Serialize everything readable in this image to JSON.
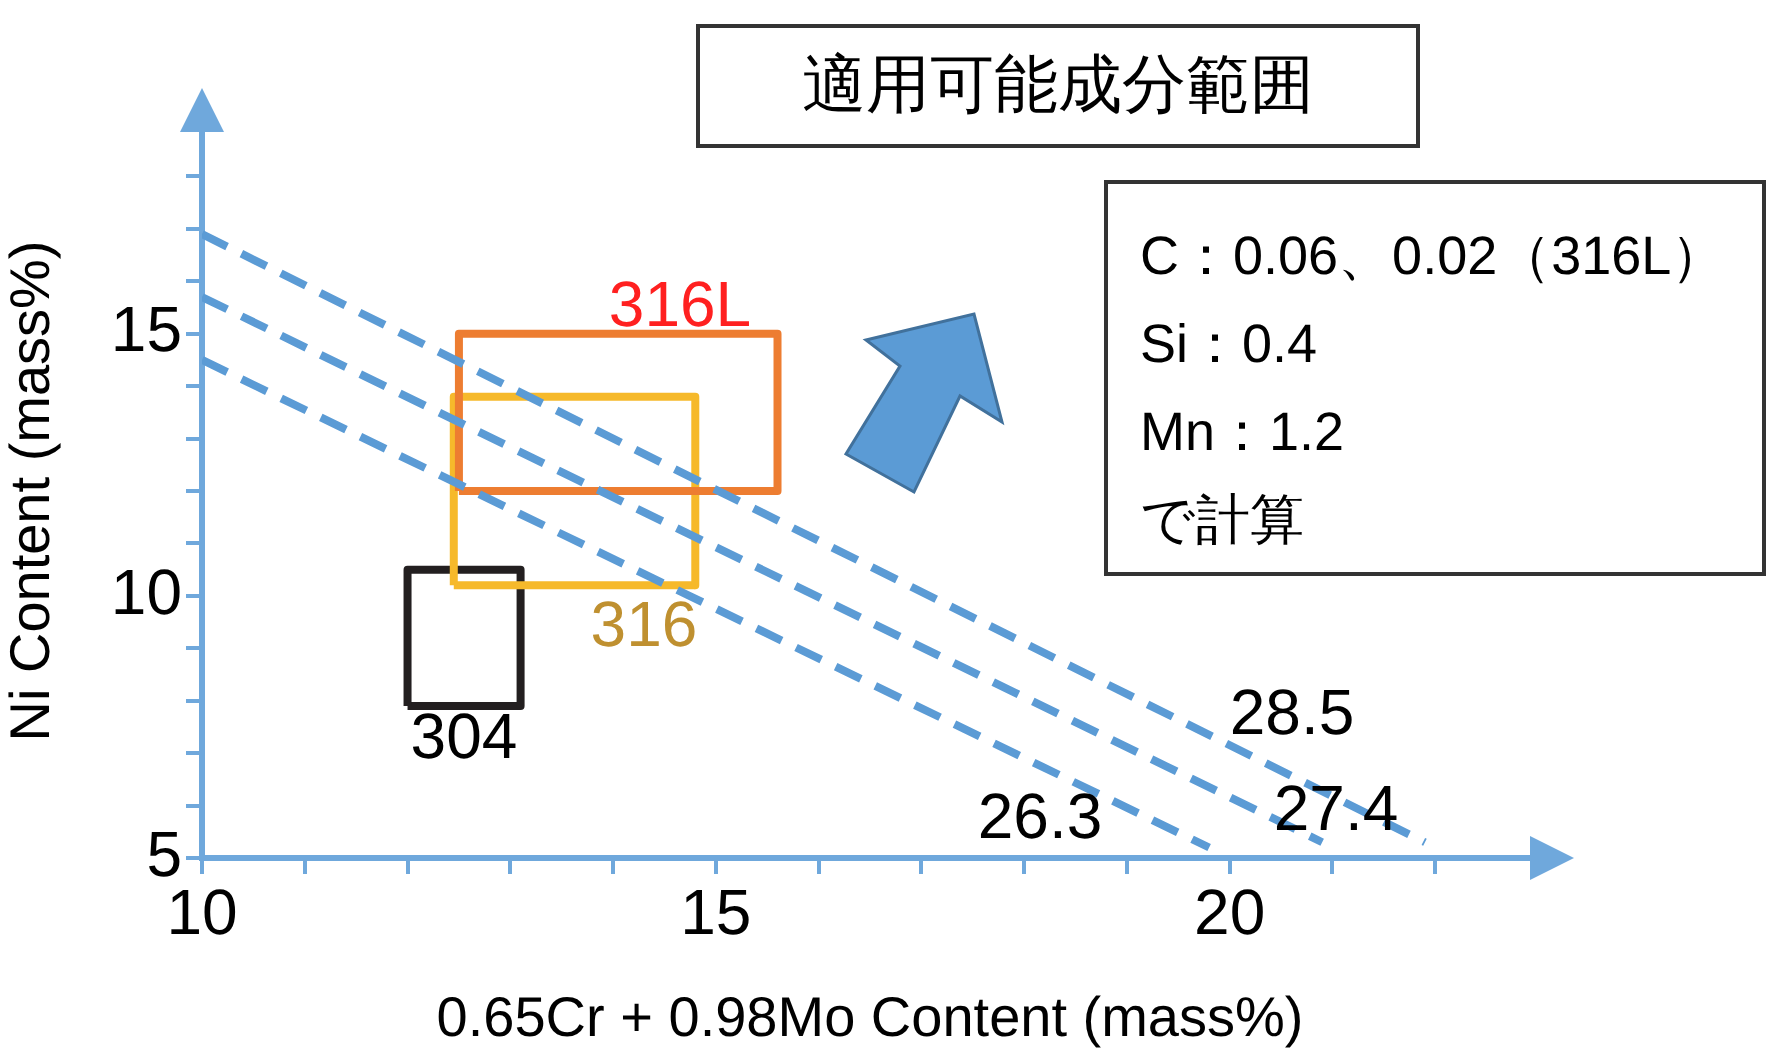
{
  "chart_data": {
    "type": "line",
    "title": "適用可能成分範囲",
    "xlabel": "0.65Cr + 0.98Mo Content (mass%)",
    "ylabel": "Ni Content (mass%)",
    "xlim": [
      10,
      23
    ],
    "ylim": [
      5,
      19
    ],
    "xticks": [
      10,
      {
        "value": 11,
        "label": null
      },
      {
        "value": 12,
        "label": null
      },
      {
        "value": 13,
        "label": null
      },
      {
        "value": 14,
        "label": null
      },
      15,
      {
        "value": 16,
        "label": null
      },
      {
        "value": 17,
        "label": null
      },
      {
        "value": 18,
        "label": null
      },
      {
        "value": 19,
        "label": null
      },
      20,
      {
        "value": 21,
        "label": null
      },
      {
        "value": 22,
        "label": null
      }
    ],
    "yticks": [
      5,
      {
        "value": 6,
        "label": null
      },
      {
        "value": 7,
        "label": null
      },
      {
        "value": 8,
        "label": null
      },
      {
        "value": 9,
        "label": null
      },
      10,
      {
        "value": 11,
        "label": null
      },
      {
        "value": 12,
        "label": null
      },
      {
        "value": 13,
        "label": null
      },
      {
        "value": 14,
        "label": null
      },
      15,
      {
        "value": 16,
        "label": null
      },
      {
        "value": 17,
        "label": null
      },
      {
        "value": 18,
        "label": null
      }
    ],
    "grid": false,
    "legend": false,
    "marker": "none",
    "series": [
      {
        "line_style": "dashed",
        "color": "#5b9bd5",
        "x": [
          10,
          21.9
        ],
        "values": [
          16.9,
          5.3
        ]
      },
      {
        "line_style": "dashed",
        "color": "#5b9bd5",
        "x": [
          10,
          20.9
        ],
        "values": [
          15.7,
          5.3
        ]
      },
      {
        "line_style": "dashed",
        "color": "#5b9bd5",
        "x": [
          10,
          19.8
        ],
        "values": [
          14.5,
          5.2
        ]
      },
      {
        "line_style": "solid",
        "color": "#ed7d31",
        "x": [
          12.5,
          12.5,
          15.6,
          15.6
        ],
        "values": [
          12.0,
          15.0,
          15.0,
          12.0
        ]
      },
      {
        "line_style": "solid",
        "color": "#ed7d31",
        "x": [
          12.5,
          15.6
        ],
        "values": [
          12.0,
          12.0
        ]
      },
      {
        "line_style": "solid",
        "color": "#f6b92b",
        "x": [
          12.45,
          12.45,
          14.8,
          14.8
        ],
        "values": [
          10.2,
          13.8,
          13.8,
          10.2
        ]
      },
      {
        "line_style": "solid",
        "color": "#f6b92b",
        "x": [
          12.45,
          14.8
        ],
        "values": [
          10.2,
          10.2
        ]
      },
      {
        "line_style": "solid",
        "color": "#231f20",
        "x": [
          12.0,
          12.0,
          13.1,
          13.1
        ],
        "values": [
          7.9,
          10.5,
          10.5,
          7.9
        ]
      },
      {
        "line_style": "solid",
        "color": "#231f20",
        "x": [
          12.0,
          13.1
        ],
        "values": [
          7.9,
          7.9
        ]
      }
    ],
    "annotations": [
      "316L",
      "316",
      "304",
      "28.5",
      "27.4",
      "26.3",
      "C：0.06、0.02（316L）\nSi：0.4\nMn：1.2\nで計算"
    ]
  }
}
